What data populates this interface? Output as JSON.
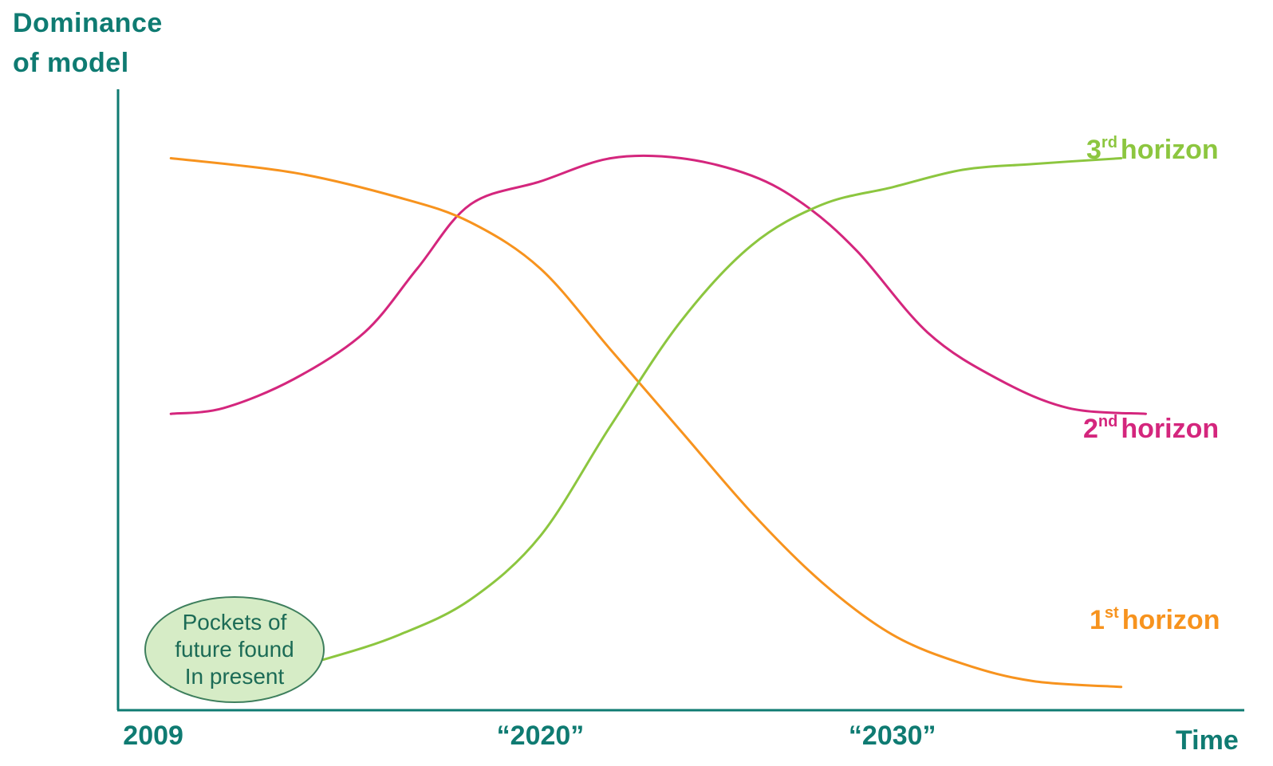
{
  "chart_data": {
    "type": "line",
    "xlabel": "Time",
    "ylabel_lines": [
      "Dominance",
      "of model"
    ],
    "x_tick_labels": [
      "2009",
      "“2020”",
      "“2030”"
    ],
    "x_ticks": [
      2009,
      2020,
      2030
    ],
    "xlim": [
      2008,
      2040
    ],
    "ylim": [
      0,
      100
    ],
    "grid": false,
    "series": [
      {
        "name": "horizon",
        "ordinal": "1",
        "suffix": "st",
        "color": "#f7931e",
        "x": [
          2009.5,
          2013,
          2016,
          2018,
          2020,
          2022,
          2024,
          2026,
          2028,
          2030,
          2032,
          2034,
          2036.5
        ],
        "y": [
          95,
          92.5,
          88.2,
          84,
          76,
          62,
          48,
          34,
          22,
          13,
          8,
          5,
          4
        ]
      },
      {
        "name": "horizon",
        "ordinal": "2",
        "suffix": "nd",
        "color": "#d4267d",
        "x": [
          2009.5,
          2011,
          2013,
          2015,
          2016.5,
          2018,
          2020,
          2022,
          2024,
          2026,
          2027.5,
          2029,
          2031,
          2033,
          2035,
          2037.2
        ],
        "y": [
          51,
          52,
          57,
          65,
          76,
          87,
          91,
          95,
          95,
          92,
          87,
          79,
          65,
          57,
          52,
          51
        ]
      },
      {
        "name": "horizon",
        "ordinal": "3",
        "suffix": "rd",
        "color": "#8cc63f",
        "x": [
          2009.5,
          2012,
          2014,
          2016,
          2018,
          2020,
          2022,
          2024,
          2026,
          2028,
          2030,
          2032,
          2034,
          2036.5
        ],
        "y": [
          4,
          6,
          9,
          13,
          19,
          30,
          49,
          67,
          80,
          87,
          90,
          93,
          94,
          95
        ]
      }
    ],
    "annotation": [
      "Pockets of",
      "future found",
      "In present"
    ]
  }
}
